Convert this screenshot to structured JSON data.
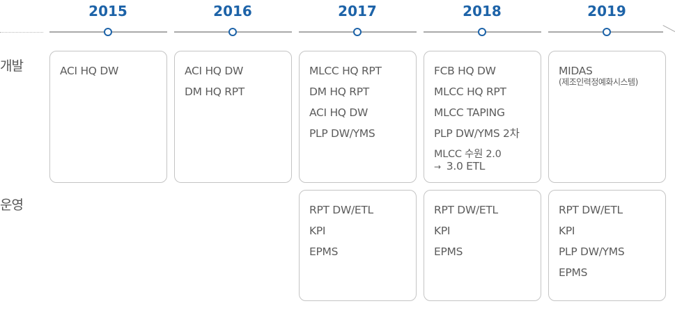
{
  "years": [
    "2015",
    "2016",
    "2017",
    "2018",
    "2019"
  ],
  "rows": {
    "dev_label": "개발",
    "ops_label": "운영"
  },
  "dev": [
    {
      "items": [
        "ACI HQ DW"
      ]
    },
    {
      "items": [
        "ACI HQ DW",
        "DM HQ RPT"
      ]
    },
    {
      "items": [
        "MLCC HQ RPT",
        "DM HQ RPT",
        "ACI HQ DW",
        "PLP DW/YMS"
      ]
    },
    {
      "items": [
        "FCB HQ DW",
        "MLCC HQ RPT",
        "MLCC TAPING",
        "PLP DW/YMS 2차"
      ],
      "extra": {
        "line1": "MLCC 수원 2.0",
        "arrow": "→",
        "line2": "3.0 ETL"
      }
    },
    {
      "items": [
        "MIDAS"
      ],
      "sub": "(제조인력정예화시스템)"
    }
  ],
  "ops": [
    {
      "items": [
        "RPT DW/ETL",
        "KPI",
        "EPMS"
      ]
    },
    {
      "items": [
        "RPT DW/ETL",
        "KPI",
        "EPMS"
      ]
    },
    {
      "items": [
        "RPT DW/ETL",
        "KPI",
        "PLP DW/YMS",
        "EPMS"
      ]
    }
  ]
}
